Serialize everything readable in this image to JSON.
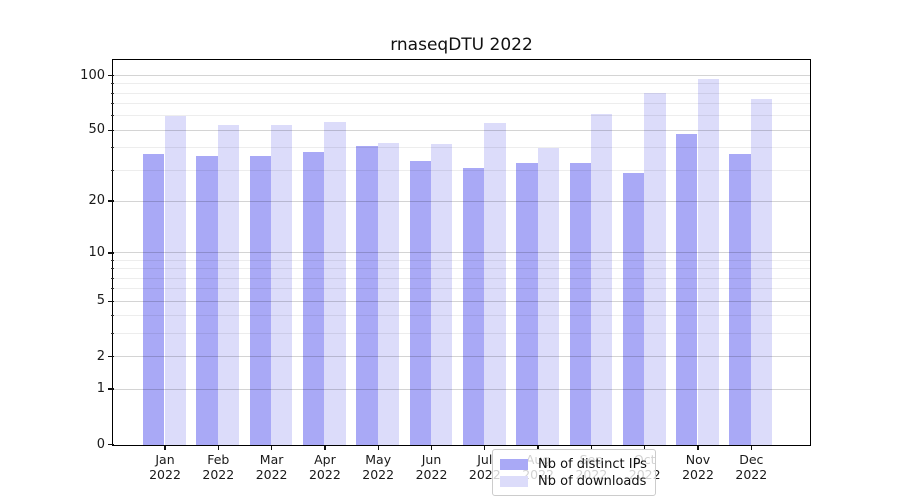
{
  "chart_data": {
    "type": "bar",
    "title": "rnaseqDTU 2022",
    "categories": [
      "Jan 2022",
      "Feb 2022",
      "Mar 2022",
      "Apr 2022",
      "May 2022",
      "Jun 2022",
      "Jul 2022",
      "Aug 2022",
      "Sep 2022",
      "Oct 2022",
      "Nov 2022",
      "Dec 2022"
    ],
    "series": [
      {
        "name": "Nb of distinct IPs",
        "color": "#a9a9f6",
        "values": [
          37,
          36,
          36,
          38,
          41,
          34,
          31,
          33,
          33,
          29,
          48,
          37
        ]
      },
      {
        "name": "Nb of downloads",
        "color": "#dcdcfa",
        "values": [
          60,
          54,
          54,
          56,
          43,
          42,
          55,
          40,
          62,
          81,
          97,
          75
        ]
      }
    ],
    "yscale": "log1p",
    "ylim": [
      0,
      121
    ],
    "y_ticks": [
      {
        "value": 0,
        "label": "0"
      },
      {
        "value": 1,
        "label": "1"
      },
      {
        "value": 2,
        "label": "2"
      },
      {
        "value": 5,
        "label": "5"
      },
      {
        "value": 10,
        "label": "10"
      },
      {
        "value": 20,
        "label": "20"
      },
      {
        "value": 50,
        "label": "50"
      },
      {
        "value": 100,
        "label": "100"
      }
    ],
    "y_minor_ticks": [
      3,
      4,
      6,
      7,
      8,
      9,
      30,
      40,
      60,
      70,
      80,
      90
    ],
    "grid": "both",
    "legend_position": "inside-bottom-center",
    "colors": {
      "grid_major": "rgba(0,0,0,0.17)",
      "grid_minor": "rgba(0,0,0,0.07)",
      "axis": "#000000"
    }
  }
}
